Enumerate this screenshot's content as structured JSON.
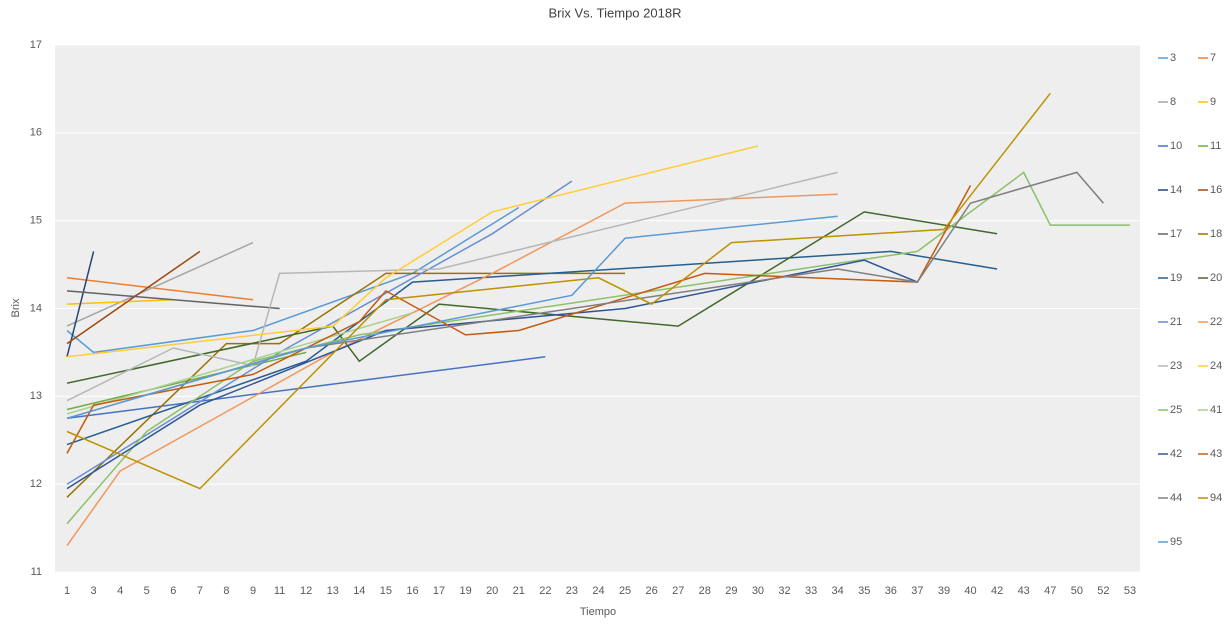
{
  "chart_data": {
    "type": "line",
    "title": "Brix Vs. Tiempo 2018R",
    "x_label": "Tiempo",
    "y_label": "Brix",
    "categories": [
      1,
      3,
      4,
      5,
      6,
      7,
      8,
      9,
      11,
      12,
      13,
      14,
      15,
      16,
      17,
      19,
      20,
      21,
      22,
      23,
      24,
      25,
      26,
      27,
      28,
      29,
      30,
      32,
      33,
      34,
      35,
      36,
      37,
      39,
      40,
      42,
      43,
      47,
      50,
      52,
      53
    ],
    "ylim": [
      11,
      17
    ],
    "yticks": [
      11,
      12,
      13,
      14,
      15,
      16,
      17
    ],
    "grid": true,
    "legend": "right",
    "series": [
      {
        "name": "3",
        "color": "#5b9bd5",
        "x": [
          1,
          3,
          9,
          16,
          21
        ],
        "values": [
          13.75,
          13.5,
          13.75,
          14.4,
          15.15
        ]
      },
      {
        "name": "7",
        "color": "#ed7d31",
        "x": [
          1,
          9
        ],
        "values": [
          14.35,
          14.1
        ]
      },
      {
        "name": "8",
        "color": "#a5a5a5",
        "x": [
          1,
          9
        ],
        "values": [
          13.8,
          14.75
        ]
      },
      {
        "name": "9",
        "color": "#ffc000",
        "x": [
          1,
          6
        ],
        "values": [
          14.05,
          14.1
        ]
      },
      {
        "name": "10",
        "color": "#4472c4",
        "x": [
          1,
          22
        ],
        "values": [
          12.75,
          13.45
        ]
      },
      {
        "name": "11",
        "color": "#70ad47",
        "x": [
          1,
          12
        ],
        "values": [
          12.85,
          13.5
        ]
      },
      {
        "name": "14",
        "color": "#264478",
        "x": [
          1,
          3
        ],
        "values": [
          13.45,
          14.65
        ]
      },
      {
        "name": "16",
        "color": "#9e480e",
        "x": [
          1,
          7
        ],
        "values": [
          13.6,
          14.65
        ]
      },
      {
        "name": "17",
        "color": "#636363",
        "x": [
          1,
          11
        ],
        "values": [
          14.2,
          14.0
        ]
      },
      {
        "name": "18",
        "color": "#997300",
        "x": [
          1,
          8,
          11,
          15,
          25
        ],
        "values": [
          11.85,
          13.6,
          13.6,
          14.4,
          14.4
        ]
      },
      {
        "name": "19",
        "color": "#255e91",
        "x": [
          1,
          12,
          16,
          36,
          42
        ],
        "values": [
          12.45,
          13.4,
          14.3,
          14.65,
          14.45
        ]
      },
      {
        "name": "20",
        "color": "#43682b",
        "x": [
          1,
          13,
          14,
          17,
          27,
          35,
          42
        ],
        "values": [
          13.15,
          13.8,
          13.4,
          14.05,
          13.8,
          15.1,
          14.85
        ]
      },
      {
        "name": "21",
        "color": "#698ed0",
        "x": [
          1,
          11,
          20,
          23
        ],
        "values": [
          12.0,
          13.5,
          14.85,
          15.45
        ]
      },
      {
        "name": "22",
        "color": "#f1975a",
        "x": [
          1,
          4,
          13,
          20,
          25,
          34
        ],
        "values": [
          11.3,
          12.15,
          13.5,
          14.4,
          15.2,
          15.3
        ]
      },
      {
        "name": "23",
        "color": "#b7b7b7",
        "x": [
          1,
          6,
          9,
          11,
          17,
          34
        ],
        "values": [
          12.95,
          13.55,
          13.35,
          14.4,
          14.45,
          15.55
        ]
      },
      {
        "name": "24",
        "color": "#ffcd33",
        "x": [
          1,
          13,
          15,
          20,
          30
        ],
        "values": [
          13.45,
          13.8,
          14.35,
          15.1,
          15.85
        ]
      },
      {
        "name": "25",
        "color": "#8cc168",
        "x": [
          1,
          5,
          9,
          14,
          37,
          43,
          47,
          53
        ],
        "values": [
          11.55,
          12.6,
          13.4,
          13.7,
          14.65,
          15.55,
          14.95,
          14.95
        ]
      },
      {
        "name": "41",
        "color": "#a9d18e",
        "x": [
          1,
          16
        ],
        "values": [
          12.8,
          13.95
        ]
      },
      {
        "name": "42",
        "color": "#2f5597",
        "x": [
          1,
          7,
          15,
          25,
          35,
          37
        ],
        "values": [
          11.95,
          12.9,
          13.75,
          14.0,
          14.55,
          14.3
        ]
      },
      {
        "name": "43",
        "color": "#c55a11",
        "x": [
          1,
          3,
          9,
          14,
          15,
          19,
          21,
          28,
          37,
          40
        ],
        "values": [
          12.35,
          12.9,
          13.25,
          13.85,
          14.2,
          13.7,
          13.75,
          14.4,
          14.3,
          15.4
        ]
      },
      {
        "name": "44",
        "color": "#7f7f7f",
        "x": [
          1,
          12,
          34,
          37,
          40,
          50,
          52
        ],
        "values": [
          12.75,
          13.55,
          14.45,
          14.3,
          15.2,
          15.55,
          15.2
        ]
      },
      {
        "name": "94",
        "color": "#bf9000",
        "x": [
          1,
          7,
          15,
          24,
          26,
          29,
          39,
          47
        ],
        "values": [
          12.6,
          11.95,
          14.1,
          14.35,
          14.05,
          14.75,
          14.9,
          16.45
        ]
      },
      {
        "name": "95",
        "color": "#5b9bd5",
        "x": [
          1,
          12,
          23,
          25,
          34
        ],
        "values": [
          12.75,
          13.55,
          14.15,
          14.8,
          15.05
        ]
      }
    ]
  }
}
